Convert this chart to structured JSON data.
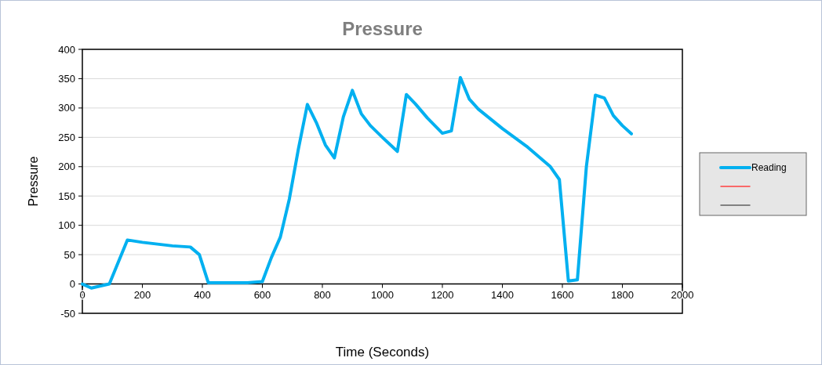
{
  "chart_data": {
    "type": "line",
    "title": "Pressure",
    "xlabel": "Time (Seconds)",
    "ylabel": "Pressure",
    "xlim": [
      0,
      2000
    ],
    "xticks": [
      0,
      200,
      400,
      600,
      800,
      1000,
      1200,
      1400,
      1600,
      1800,
      2000
    ],
    "ylim": [
      -50,
      400
    ],
    "yticks": [
      -50,
      0,
      50,
      100,
      150,
      200,
      250,
      300,
      350,
      400
    ],
    "grid": "y",
    "legend": "right",
    "marker": "none",
    "line_style": "solid",
    "series": [
      {
        "name": "Reading",
        "color": "#00b0f0",
        "x": [
          0,
          30,
          90,
          150,
          200,
          250,
          300,
          360,
          390,
          420,
          550,
          600,
          630,
          660,
          690,
          720,
          750,
          780,
          810,
          840,
          870,
          900,
          930,
          960,
          1000,
          1050,
          1080,
          1110,
          1150,
          1200,
          1230,
          1260,
          1290,
          1320,
          1400,
          1480,
          1560,
          1590,
          1620,
          1650,
          1680,
          1710,
          1740,
          1770,
          1800,
          1830
        ],
        "values": [
          0,
          -7,
          0,
          75,
          71,
          68,
          65,
          63,
          50,
          2,
          2,
          4,
          45,
          80,
          145,
          230,
          306,
          275,
          237,
          215,
          285,
          330,
          290,
          270,
          250,
          226,
          323,
          307,
          283,
          257,
          261,
          352,
          315,
          298,
          265,
          235,
          200,
          178,
          5,
          7,
          200,
          322,
          317,
          287,
          270,
          256
        ]
      },
      {
        "color": "#ff4040"
      },
      {
        "color": "#606060"
      }
    ]
  }
}
